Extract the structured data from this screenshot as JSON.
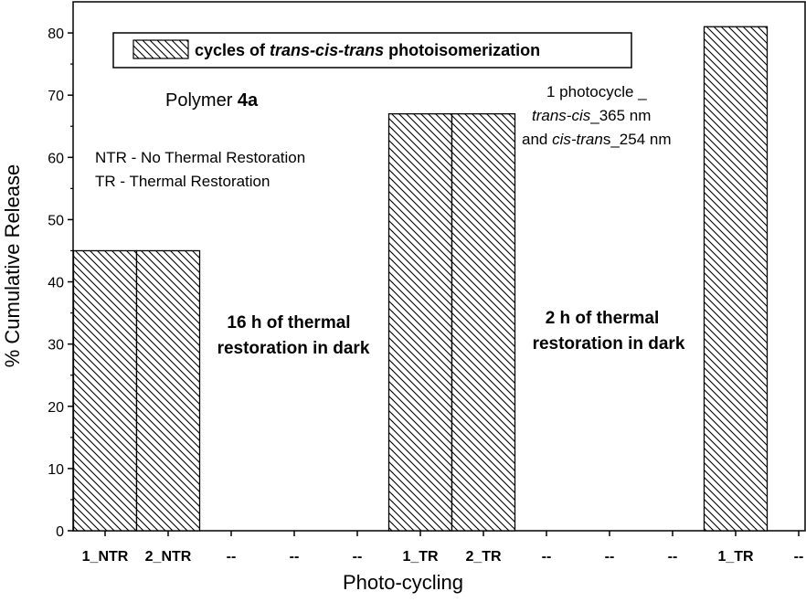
{
  "chart_data": {
    "type": "bar",
    "xlabel": "Photo-cycling",
    "ylabel": "% Cumulative Release",
    "ylim": [
      0,
      85
    ],
    "yticks": [
      0,
      10,
      20,
      30,
      40,
      50,
      60,
      70,
      80
    ],
    "grid": false,
    "categories": [
      "1_NTR",
      "2_NTR",
      "--",
      "--",
      "--",
      "1_TR",
      "2_TR",
      "--",
      "--",
      "--",
      "1_TR",
      "--"
    ],
    "series": [
      {
        "name": "cycles of trans-cis-trans photoisomerization",
        "values": [
          45,
          45,
          null,
          null,
          null,
          67,
          67,
          null,
          null,
          null,
          81,
          null
        ]
      }
    ],
    "legend": {
      "position": "top",
      "parts": [
        {
          "text": "cycles of ",
          "italic": false
        },
        {
          "text": "trans-cis-trans",
          "italic": true
        },
        {
          "text": " photoisomerization",
          "italic": false
        }
      ]
    },
    "annotations": {
      "polymer_prefix": "Polymer ",
      "polymer_bold": "4a",
      "ntr_note": "NTR - No Thermal Restoration",
      "tr_note": "TR - Thermal Restoration",
      "photocycle_line1": "1 photocycle _",
      "photocycle_line2_italic": "trans-cis",
      "photocycle_line2_rest": "_365 nm",
      "photocycle_line3_pre": "and ",
      "photocycle_line3_italic": "cis-tran",
      "photocycle_line3_rest": "s_254 nm",
      "restoration16_line1": "16 h of thermal",
      "restoration16_line2": "restoration in dark",
      "restoration2_line1": "2 h of thermal",
      "restoration2_line2": "restoration in dark"
    }
  }
}
